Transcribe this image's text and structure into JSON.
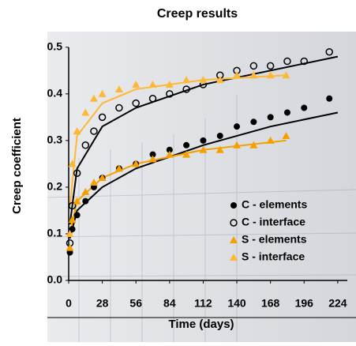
{
  "chart_data": {
    "type": "scatter",
    "title": "Creep results",
    "x_label": "Time (days)",
    "y_label": "Creep coefficient",
    "xlim": [
      0,
      230
    ],
    "ylim": [
      0,
      0.52
    ],
    "xticks": [
      0,
      28,
      56,
      84,
      112,
      140,
      168,
      196,
      224
    ],
    "yticks": [
      {
        "value": 0,
        "label": "0.0"
      },
      0.1,
      0.2,
      0.3,
      0.4,
      0.5
    ],
    "legend": "lower right",
    "series": [
      {
        "name": "C - elements",
        "color": "#000000",
        "marker": "circle",
        "x": [
          1,
          3,
          7,
          14,
          21,
          28,
          42,
          56,
          70,
          84,
          98,
          112,
          126,
          140,
          154,
          168,
          182,
          196,
          217
        ],
        "values": [
          0.06,
          0.11,
          0.14,
          0.17,
          0.2,
          0.22,
          0.24,
          0.25,
          0.27,
          0.28,
          0.29,
          0.3,
          0.31,
          0.33,
          0.34,
          0.35,
          0.36,
          0.37,
          0.39
        ],
        "fit": {
          "x": [
            1,
            7,
            28,
            56,
            112,
            168,
            224
          ],
          "values": [
            0.09,
            0.15,
            0.2,
            0.24,
            0.29,
            0.33,
            0.36
          ]
        }
      },
      {
        "name": "C - interface",
        "color": "#000000",
        "marker": "open-circle",
        "x": [
          1,
          3,
          7,
          14,
          21,
          28,
          42,
          56,
          70,
          84,
          98,
          112,
          126,
          140,
          154,
          168,
          182,
          196,
          217
        ],
        "values": [
          0.08,
          0.16,
          0.23,
          0.29,
          0.32,
          0.35,
          0.37,
          0.38,
          0.39,
          0.4,
          0.41,
          0.42,
          0.44,
          0.45,
          0.46,
          0.46,
          0.47,
          0.47,
          0.49
        ],
        "fit": {
          "x": [
            1,
            7,
            28,
            56,
            112,
            168,
            224
          ],
          "values": [
            0.12,
            0.24,
            0.33,
            0.37,
            0.42,
            0.45,
            0.48
          ]
        }
      },
      {
        "name": "S - elements",
        "color": "#f5a000",
        "marker": "triangle",
        "x": [
          1,
          3,
          7,
          14,
          21,
          28,
          42,
          56,
          70,
          84,
          98,
          112,
          126,
          140,
          154,
          168,
          181
        ],
        "values": [
          0.07,
          0.13,
          0.17,
          0.19,
          0.21,
          0.22,
          0.24,
          0.25,
          0.26,
          0.27,
          0.27,
          0.28,
          0.28,
          0.29,
          0.29,
          0.3,
          0.31
        ],
        "fit": {
          "x": [
            1,
            7,
            28,
            56,
            112,
            181
          ],
          "values": [
            0.1,
            0.17,
            0.22,
            0.25,
            0.28,
            0.3
          ]
        }
      },
      {
        "name": "S - interface",
        "color": "#ffb833",
        "marker": "triangle",
        "x": [
          1,
          3,
          7,
          14,
          21,
          28,
          42,
          56,
          70,
          84,
          98,
          112,
          126,
          140,
          154,
          168,
          181
        ],
        "values": [
          0.1,
          0.25,
          0.32,
          0.36,
          0.39,
          0.4,
          0.41,
          0.42,
          0.42,
          0.42,
          0.43,
          0.43,
          0.43,
          0.44,
          0.44,
          0.44,
          0.44
        ],
        "fit": {
          "x": [
            1,
            7,
            28,
            56,
            112,
            181
          ],
          "values": [
            0.16,
            0.31,
            0.38,
            0.41,
            0.43,
            0.44
          ]
        }
      }
    ]
  }
}
